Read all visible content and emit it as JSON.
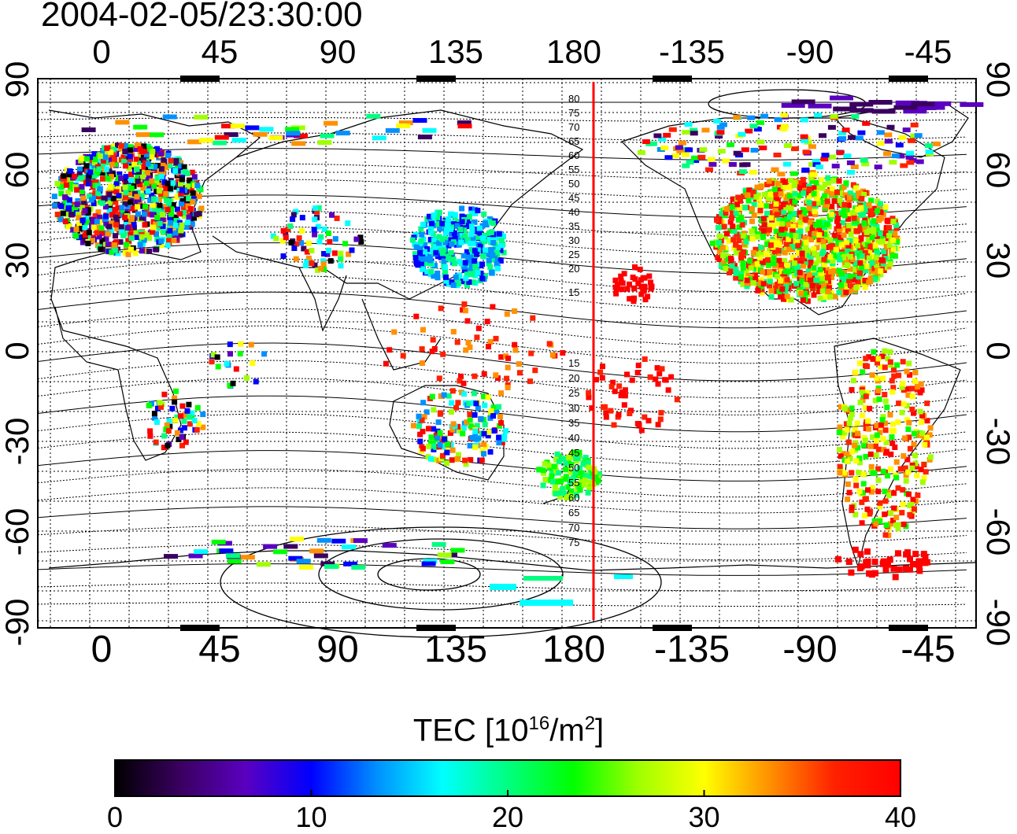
{
  "header": {
    "timestamp": "2004-02-05/23:30:00"
  },
  "map": {
    "top_lon_labels": [
      "0",
      "45",
      "90",
      "135",
      "180",
      "-135",
      "-90",
      "-45"
    ],
    "bottom_lon_labels": [
      "0",
      "45",
      "90",
      "135",
      "180",
      "-135",
      "-90",
      "-45"
    ],
    "left_lat_labels": [
      "90",
      "60",
      "30",
      "0",
      "-30",
      "-60",
      "-90"
    ],
    "right_lat_labels": [
      "90",
      "60",
      "30",
      "0",
      "-30",
      "-60",
      "-90"
    ],
    "contour_labels_north": [
      "80",
      "75",
      "70",
      "65",
      "60",
      "55",
      "50",
      "45",
      "40",
      "35",
      "30",
      "25",
      "20",
      "15"
    ],
    "contour_labels_south": [
      "15",
      "20",
      "25",
      "30",
      "35",
      "40",
      "45",
      "50",
      "55",
      "60",
      "65",
      "70",
      "75"
    ],
    "terminator_color": "#ff0000"
  },
  "colorbar": {
    "title_main": "TEC  [10",
    "title_sup1": "16",
    "title_mid": "/m",
    "title_sup2": "2",
    "title_end": "]",
    "tick_labels": [
      "0",
      "10",
      "20",
      "30",
      "40"
    ],
    "colors": [
      "#000000",
      "#3a0060",
      "#5a00c0",
      "#0000ff",
      "#0090ff",
      "#00ffff",
      "#00ff80",
      "#00ff00",
      "#a0ff00",
      "#ffff00",
      "#ff9000",
      "#ff2000",
      "#ff0000"
    ]
  }
}
